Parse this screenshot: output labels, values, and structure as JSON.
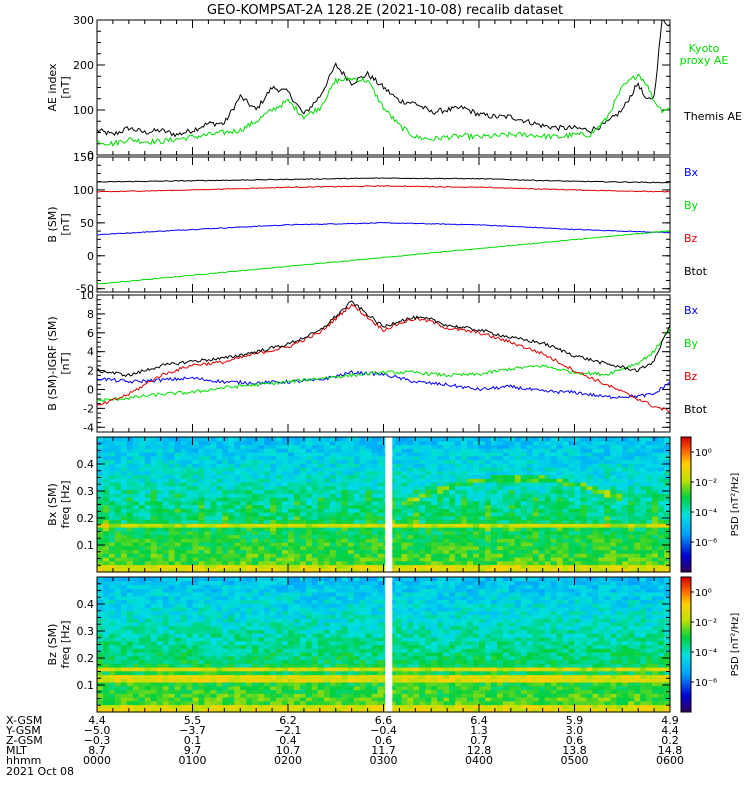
{
  "title": "GEO-KOMPSAT-2A 128.2E (2021-10-08) recalib dataset",
  "chart_data": [
    {
      "type": "line",
      "ylabel_lines": [
        "AE index",
        "[nT]"
      ],
      "ylim": [
        0,
        300
      ],
      "yticks": [
        0,
        100,
        200,
        300
      ],
      "xlim": [
        0,
        360
      ],
      "legend_placement": "right",
      "series": [
        {
          "name": "Themis AE",
          "color": "#000000",
          "x": [
            0,
            10,
            20,
            30,
            40,
            50,
            60,
            70,
            80,
            90,
            100,
            110,
            120,
            130,
            140,
            150,
            160,
            170,
            180,
            190,
            200,
            210,
            220,
            230,
            240,
            250,
            260,
            270,
            280,
            290,
            300,
            310,
            320,
            330,
            340,
            345,
            350,
            355,
            360
          ],
          "y": [
            55,
            45,
            60,
            50,
            55,
            45,
            55,
            70,
            70,
            130,
            100,
            150,
            140,
            90,
            130,
            200,
            160,
            180,
            150,
            120,
            115,
            95,
            100,
            105,
            90,
            85,
            85,
            75,
            65,
            60,
            60,
            55,
            70,
            100,
            160,
            120,
            130,
            300,
            290
          ]
        },
        {
          "name": "Kyoto proxy AE",
          "color": "#00dd00",
          "x": [
            0,
            10,
            20,
            30,
            40,
            50,
            60,
            70,
            80,
            90,
            100,
            110,
            120,
            130,
            140,
            150,
            160,
            170,
            180,
            190,
            200,
            210,
            220,
            230,
            240,
            250,
            260,
            270,
            280,
            290,
            300,
            310,
            320,
            330,
            340,
            345,
            350,
            355,
            360
          ],
          "y": [
            30,
            25,
            35,
            30,
            30,
            35,
            40,
            45,
            50,
            55,
            75,
            100,
            120,
            85,
            105,
            165,
            170,
            165,
            105,
            65,
            40,
            35,
            40,
            42,
            40,
            42,
            45,
            45,
            42,
            40,
            45,
            45,
            80,
            150,
            180,
            160,
            120,
            100,
            105
          ]
        }
      ]
    },
    {
      "type": "line",
      "ylabel_lines": [
        "B (SM)",
        "[nT]"
      ],
      "ylim": [
        -55,
        150
      ],
      "yticks": [
        -50,
        0,
        50,
        100,
        150
      ],
      "xlim": [
        0,
        360
      ],
      "legend_placement": "right",
      "series": [
        {
          "name": "Bx",
          "color": "#0000ff",
          "x": [
            0,
            60,
            120,
            180,
            240,
            300,
            360
          ],
          "y": [
            32,
            40,
            47,
            50,
            47,
            40,
            35
          ]
        },
        {
          "name": "By",
          "color": "#00dd00",
          "x": [
            0,
            360
          ],
          "y": [
            -43,
            38
          ]
        },
        {
          "name": "Bz",
          "color": "#dd0000",
          "x": [
            0,
            60,
            120,
            180,
            240,
            300,
            360
          ],
          "y": [
            97,
            100,
            104,
            106,
            104,
            100,
            97
          ]
        },
        {
          "name": "Btot",
          "color": "#000000",
          "x": [
            0,
            60,
            120,
            180,
            240,
            300,
            360
          ],
          "y": [
            112,
            114,
            116,
            118,
            117,
            113,
            111
          ]
        }
      ]
    },
    {
      "type": "line",
      "ylabel_lines": [
        "B (SM)-IGRF (SM)",
        "[nT]"
      ],
      "ylim": [
        -4.5,
        10
      ],
      "yticks": [
        -4,
        -2,
        0,
        2,
        4,
        6,
        8,
        10
      ],
      "xlim": [
        0,
        360
      ],
      "legend_placement": "right",
      "series": [
        {
          "name": "Bx",
          "color": "#0000ff",
          "x": [
            0,
            20,
            40,
            60,
            80,
            100,
            120,
            140,
            160,
            180,
            200,
            220,
            240,
            260,
            280,
            300,
            320,
            340,
            350,
            360
          ],
          "y": [
            1.2,
            0.8,
            1.0,
            1.2,
            0.8,
            0.7,
            0.8,
            1.0,
            1.8,
            1.6,
            0.8,
            0.5,
            0.0,
            0.3,
            -0.2,
            -0.3,
            -0.8,
            -0.7,
            -0.5,
            0.8
          ]
        },
        {
          "name": "By",
          "color": "#00dd00",
          "x": [
            0,
            20,
            40,
            60,
            80,
            100,
            120,
            140,
            160,
            180,
            200,
            220,
            240,
            260,
            280,
            300,
            320,
            340,
            350,
            360
          ],
          "y": [
            -1.2,
            -0.9,
            -0.5,
            -0.3,
            0.2,
            0.5,
            0.8,
            1.2,
            1.5,
            1.8,
            1.8,
            1.5,
            1.6,
            2.2,
            2.5,
            1.8,
            1.6,
            2.8,
            4.0,
            6.5
          ]
        },
        {
          "name": "Bz",
          "color": "#dd0000",
          "x": [
            0,
            20,
            40,
            60,
            80,
            100,
            120,
            140,
            160,
            180,
            190,
            200,
            210,
            220,
            240,
            260,
            280,
            300,
            320,
            340,
            350,
            360
          ],
          "y": [
            -1.8,
            -0.5,
            1.5,
            2.6,
            2.9,
            3.8,
            4.5,
            6.0,
            9.0,
            6.3,
            7.0,
            7.5,
            7.2,
            6.5,
            6.0,
            5.0,
            3.8,
            2.0,
            0.5,
            -1.0,
            -1.8,
            -2.3
          ]
        },
        {
          "name": "Btot",
          "color": "#000000",
          "x": [
            0,
            20,
            40,
            60,
            80,
            100,
            120,
            140,
            160,
            180,
            190,
            200,
            210,
            220,
            240,
            260,
            280,
            300,
            320,
            340,
            350,
            360
          ],
          "y": [
            2.0,
            1.5,
            2.5,
            3.0,
            3.3,
            4.0,
            4.8,
            6.2,
            9.3,
            6.6,
            7.3,
            7.6,
            7.4,
            6.8,
            6.3,
            5.5,
            4.9,
            3.6,
            2.7,
            2.0,
            3.0,
            6.9
          ]
        }
      ]
    },
    {
      "type": "heatmap",
      "component": "Bx (SM)",
      "ylabel_lines": [
        "Bx (SM)",
        "freq [Hz]"
      ],
      "ylim": [
        0,
        0.5
      ],
      "yticks": [
        0.1,
        0.2,
        0.3,
        0.4
      ],
      "colorbar_label": "PSD [nT²/Hz]",
      "colorbar_ticks": [
        "10⁰",
        "10⁻²",
        "10⁻⁴",
        "10⁻⁶"
      ],
      "colorbar_exponents": [
        0,
        -2,
        -4,
        -6
      ],
      "data_gap_x": 183,
      "bands_hz": [
        0.17
      ]
    },
    {
      "type": "heatmap",
      "component": "Bz (SM)",
      "ylabel_lines": [
        "Bz (SM)",
        "freq [Hz]"
      ],
      "ylim": [
        0,
        0.5
      ],
      "yticks": [
        0.1,
        0.2,
        0.3,
        0.4
      ],
      "colorbar_label": "PSD [nT²/Hz]",
      "colorbar_ticks": [
        "10⁰",
        "10⁻²",
        "10⁻⁴",
        "10⁻⁶"
      ],
      "colorbar_exponents": [
        0,
        -2,
        -4,
        -6
      ],
      "data_gap_x": 183,
      "bands_hz": [
        0.125,
        0.16
      ]
    }
  ],
  "xaxis": {
    "row_labels": [
      "X-GSM",
      "Y-GSM",
      "Z-GSM",
      "MLT",
      "hhmm"
    ],
    "columns": [
      {
        "x": 0,
        "values": [
          "4.4",
          "−5.0",
          "−0.3",
          "8.7",
          "0000"
        ]
      },
      {
        "x": 60,
        "values": [
          "5.5",
          "−3.7",
          "0.1",
          "9.7",
          "0100"
        ]
      },
      {
        "x": 120,
        "values": [
          "6.2",
          "−2.1",
          "0.4",
          "10.7",
          "0200"
        ]
      },
      {
        "x": 180,
        "values": [
          "6.6",
          "−0.4",
          "0.6",
          "11.7",
          "0300"
        ]
      },
      {
        "x": 240,
        "values": [
          "6.4",
          "1.3",
          "0.7",
          "12.8",
          "0400"
        ]
      },
      {
        "x": 300,
        "values": [
          "5.9",
          "3.0",
          "0.6",
          "13.8",
          "0500"
        ]
      },
      {
        "x": 360,
        "values": [
          "4.9",
          "4.4",
          "0.2",
          "14.8",
          "0600"
        ]
      }
    ],
    "date": "2021 Oct 08"
  }
}
